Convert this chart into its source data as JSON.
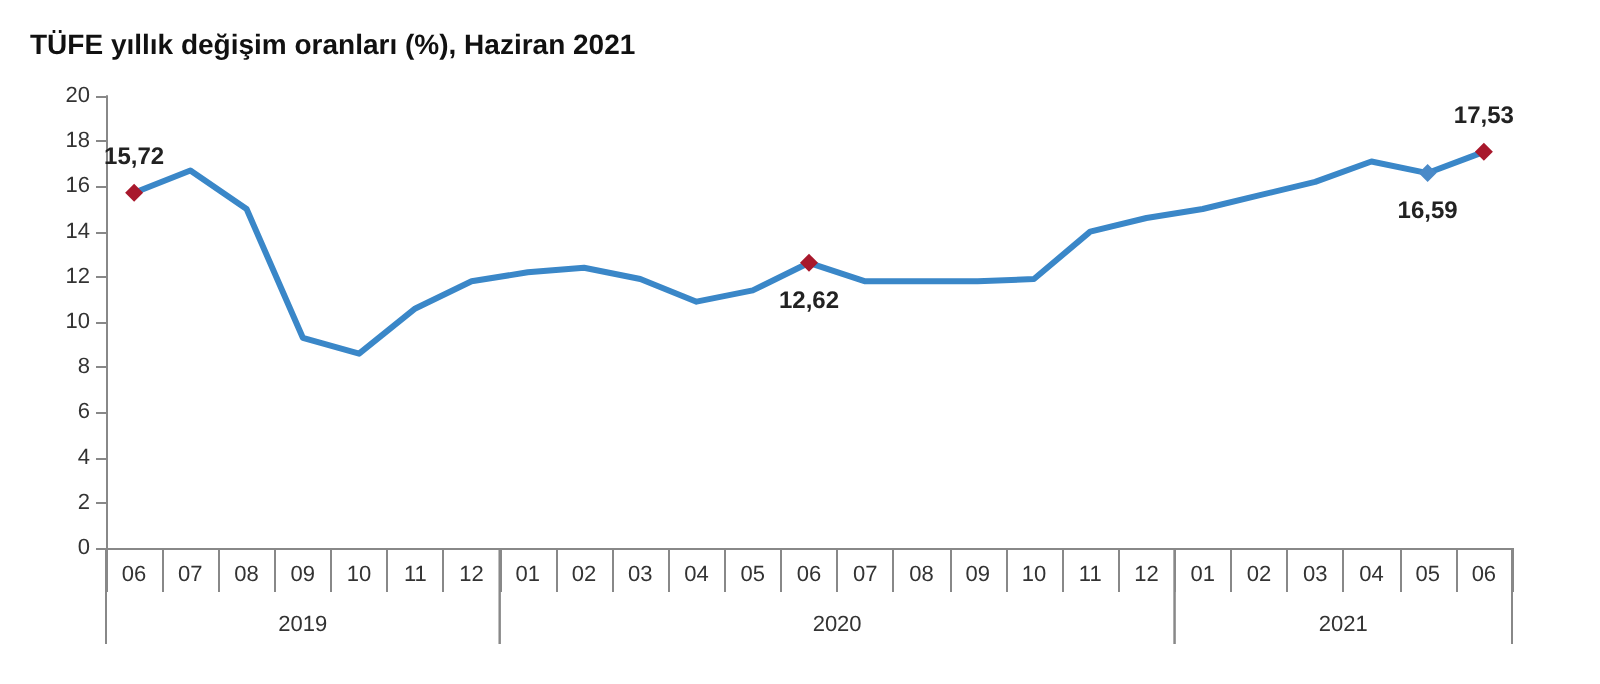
{
  "chart_data": {
    "type": "line",
    "title": "TÜFE yıllık değişim oranları (%), Haziran 2021",
    "categories": [
      "06",
      "07",
      "08",
      "09",
      "10",
      "11",
      "12",
      "01",
      "02",
      "03",
      "04",
      "05",
      "06",
      "07",
      "08",
      "09",
      "10",
      "11",
      "12",
      "01",
      "02",
      "03",
      "04",
      "05",
      "06"
    ],
    "series": [
      {
        "color": "#3a87c8",
        "values": [
          15.72,
          16.7,
          15.0,
          9.3,
          8.6,
          10.6,
          11.8,
          12.2,
          12.4,
          11.9,
          10.9,
          11.4,
          12.62,
          11.8,
          11.8,
          11.8,
          11.9,
          14.0,
          14.6,
          15.0,
          15.6,
          16.2,
          17.1,
          16.59,
          17.53
        ],
        "value_labels": [
          "15,72",
          null,
          null,
          null,
          null,
          null,
          null,
          null,
          null,
          null,
          null,
          null,
          "12,62",
          null,
          null,
          null,
          null,
          null,
          null,
          null,
          null,
          null,
          null,
          "16,59",
          "17,53"
        ],
        "colors": [
          "#a8182c",
          null,
          null,
          null,
          null,
          null,
          null,
          null,
          null,
          null,
          null,
          null,
          "#a8182c",
          null,
          null,
          null,
          null,
          null,
          null,
          null,
          null,
          null,
          null,
          "#4a8ac8",
          "#a8182c"
        ]
      }
    ],
    "ylim": [
      0,
      20
    ],
    "yticks": [
      0,
      2,
      4,
      6,
      8,
      10,
      12,
      14,
      16,
      18,
      20
    ],
    "grid": false,
    "line_style": "solid",
    "annotations": [
      "2019",
      "2020",
      "2021"
    ]
  }
}
